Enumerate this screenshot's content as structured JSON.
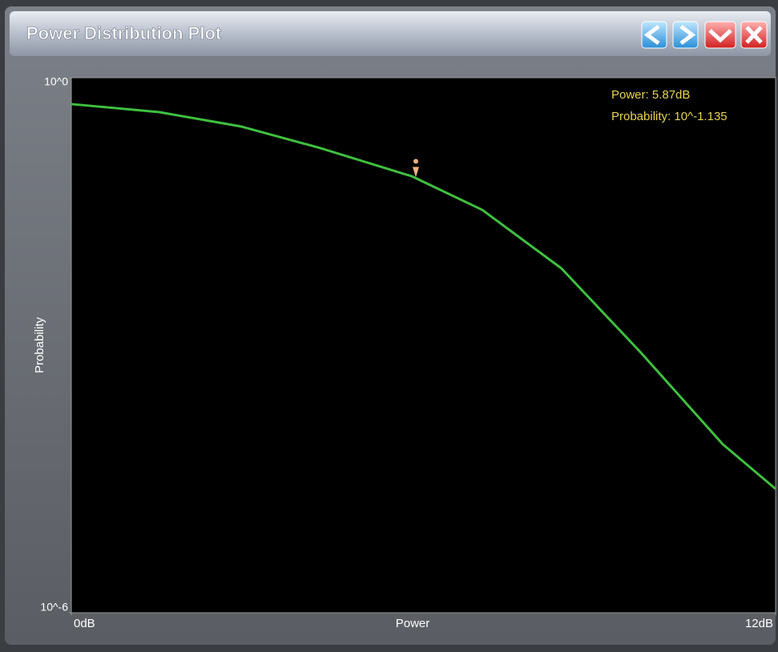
{
  "window": {
    "title": "Power Distribution Plot"
  },
  "chart_data": {
    "type": "line",
    "xlabel": "Power",
    "ylabel": "Probability",
    "x": [
      0,
      1.5,
      2.9,
      4.25,
      5.8,
      7,
      8.35,
      9.7,
      11.1,
      12
    ],
    "series": [
      {
        "name": "Probability",
        "color": "#3fbf3f",
        "values": [
          0.506,
          0.411,
          0.283,
          0.162,
          0.0785,
          0.033,
          0.00728,
          0.000832,
          7.76e-05,
          2.45e-05
        ]
      }
    ],
    "xlim": [
      0,
      12
    ],
    "xticks": [
      {
        "value": 0,
        "label": "0dB"
      },
      {
        "value": 12,
        "label": "12dB"
      }
    ],
    "ylim": [
      1e-06,
      1
    ],
    "yticks": [
      {
        "value": 1e-06,
        "label": "10^-6"
      },
      {
        "value": 1,
        "label": "10^0"
      }
    ],
    "yscale": "log",
    "marker": {
      "x": 5.87,
      "y": 0.07328
    },
    "annotations": [
      "Power: 5.87dB",
      "Probability: 10^-1.135"
    ]
  }
}
